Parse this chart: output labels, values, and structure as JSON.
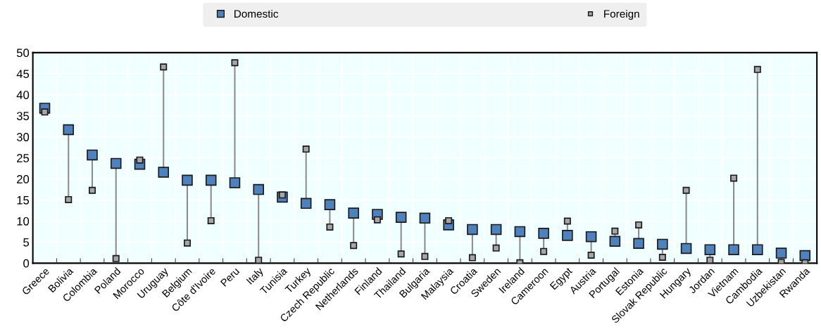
{
  "chart_data": {
    "type": "scatter",
    "categories": [
      "Greece",
      "Bolivia",
      "Colombia",
      "Poland",
      "Morocco",
      "Uruguay",
      "Belgium",
      "Côte d'Ivoire",
      "Peru",
      "Italy",
      "Tunisia",
      "Turkey",
      "Czech Republic",
      "Netherlands",
      "Finland",
      "Thailand",
      "Bulgaria",
      "Malaysia",
      "Croatia",
      "Sweden",
      "Ireland",
      "Cameroon",
      "Egypt",
      "Austria",
      "Portugal",
      "Estonia",
      "Slovak Republic",
      "Hungary",
      "Jordan",
      "Vietnam",
      "Cambodia",
      "Uzbekistan",
      "Rwanda"
    ],
    "series": [
      {
        "name": "Foreign",
        "color": "#a6a6a6",
        "marker": "square",
        "values": [
          35.9,
          15.1,
          17.3,
          1.1,
          24.5,
          46.6,
          4.8,
          10.1,
          47.6,
          0.7,
          16.2,
          27.1,
          8.6,
          4.2,
          10.3,
          2.2,
          1.6,
          10.1,
          1.3,
          3.6,
          0.1,
          2.8,
          10.0,
          1.9,
          7.6,
          9.1,
          1.4,
          17.3,
          0.7,
          20.2,
          46.0,
          0.2,
          0.1
        ]
      },
      {
        "name": "Domestic",
        "color": "#4f81bd",
        "marker": "square",
        "values": [
          36.8,
          31.7,
          25.7,
          23.7,
          23.5,
          21.6,
          19.7,
          19.7,
          19.1,
          17.5,
          15.7,
          14.2,
          13.9,
          11.9,
          11.6,
          10.9,
          10.7,
          9.1,
          8.0,
          8.0,
          7.5,
          7.1,
          6.6,
          6.3,
          5.2,
          4.7,
          4.5,
          3.5,
          3.2,
          3.2,
          3.2,
          2.4,
          1.8
        ]
      }
    ],
    "ylim": [
      0,
      50
    ],
    "yticks": [
      0,
      5,
      10,
      15,
      20,
      25,
      30,
      35,
      40,
      45,
      50
    ],
    "grid": true,
    "legend": "top"
  }
}
